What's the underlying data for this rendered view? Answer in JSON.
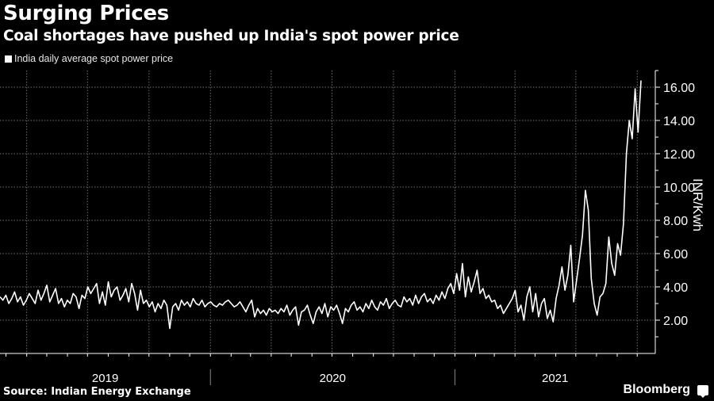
{
  "header": {
    "title": "Surging Prices",
    "subtitle": "Coal shortages have pushed up India's spot power price"
  },
  "footer": {
    "source": "Source: Indian Energy Exchange",
    "brand": "Bloomberg"
  },
  "colors": {
    "background": "#000000",
    "line": "#ffffff",
    "grid": "#6e6e6e",
    "text": "#ffffff"
  },
  "chart_data": {
    "type": "line",
    "title": "Surging Prices",
    "subtitle": "Coal shortages have pushed up India's spot power price",
    "xlabel": "",
    "ylabel": "INR/Kwh",
    "ylim": [
      0,
      17
    ],
    "y_ticks": [
      "2.00",
      "4.00",
      "6.00",
      "8.00",
      "10.00",
      "12.00",
      "14.00",
      "16.00"
    ],
    "y_tick_values": [
      2,
      4,
      6,
      8,
      10,
      12,
      14,
      16
    ],
    "x_range": [
      "2019-02-20",
      "2021-10-28"
    ],
    "x_tick_labels": [
      "2019",
      "2020",
      "2021"
    ],
    "grid": true,
    "legend": {
      "position": "top-left",
      "entries": [
        "India daily average spot power price"
      ]
    },
    "series": [
      {
        "name": "India daily average spot power price",
        "start_date": "2019-02-20",
        "interval_days": 5,
        "values": [
          3.4,
          3.2,
          3.5,
          3.0,
          3.3,
          3.7,
          3.1,
          3.4,
          2.9,
          3.2,
          3.6,
          3.3,
          3.0,
          3.8,
          3.2,
          3.6,
          4.1,
          3.1,
          3.5,
          3.9,
          3.0,
          3.3,
          2.8,
          3.2,
          3.0,
          3.6,
          3.4,
          2.7,
          3.5,
          3.3,
          4.0,
          3.6,
          3.9,
          4.2,
          3.0,
          3.7,
          2.9,
          4.3,
          3.4,
          3.8,
          4.0,
          3.2,
          3.5,
          3.9,
          3.1,
          4.2,
          3.6,
          2.6,
          3.8,
          3.0,
          3.2,
          2.8,
          3.1,
          2.5,
          3.0,
          2.7,
          3.2,
          2.9,
          1.5,
          2.8,
          3.0,
          2.6,
          3.2,
          2.9,
          3.1,
          2.8,
          3.3,
          3.0,
          2.9,
          3.2,
          2.8,
          3.0,
          3.1,
          2.9,
          2.8,
          3.0,
          2.9,
          3.1,
          3.2,
          3.0,
          2.8,
          2.9,
          3.1,
          2.8,
          2.5,
          2.9,
          3.2,
          2.2,
          2.7,
          2.4,
          2.6,
          2.3,
          2.7,
          2.5,
          2.6,
          2.4,
          2.7,
          2.5,
          2.9,
          2.3,
          2.6,
          2.8,
          1.7,
          2.5,
          2.6,
          2.9,
          2.3,
          1.8,
          2.5,
          2.8,
          2.4,
          3.0,
          2.2,
          2.8,
          2.6,
          2.9,
          2.4,
          1.8,
          2.7,
          2.5,
          2.9,
          3.1,
          2.6,
          2.8,
          2.5,
          3.0,
          2.7,
          3.2,
          2.8,
          2.6,
          3.1,
          2.9,
          3.3,
          2.7,
          3.0,
          3.2,
          2.9,
          2.8,
          3.4,
          3.1,
          3.3,
          2.9,
          3.5,
          3.0,
          3.4,
          3.6,
          3.1,
          3.3,
          3.0,
          3.5,
          3.2,
          3.7,
          3.3,
          3.9,
          4.2,
          3.6,
          4.8,
          3.8,
          5.4,
          3.4,
          4.6,
          3.7,
          4.3,
          5.0,
          3.6,
          3.9,
          3.3,
          3.5,
          3.1,
          3.2,
          2.7,
          2.9,
          2.4,
          2.7,
          3.0,
          3.3,
          3.8,
          2.5,
          2.9,
          2.0,
          3.4,
          4.0,
          2.5,
          3.6,
          2.2,
          3.0,
          3.3,
          2.1,
          2.6,
          1.9,
          3.3,
          4.1,
          5.2,
          3.8,
          4.7,
          6.5,
          3.1,
          4.4,
          5.7,
          7.1,
          9.8,
          8.6,
          4.5,
          3.0,
          2.3,
          3.4,
          3.6,
          4.2,
          7.0,
          5.4,
          4.7,
          6.6,
          5.9,
          7.8,
          12.0,
          14.0,
          12.9,
          15.9,
          13.3,
          16.4
        ]
      }
    ]
  }
}
